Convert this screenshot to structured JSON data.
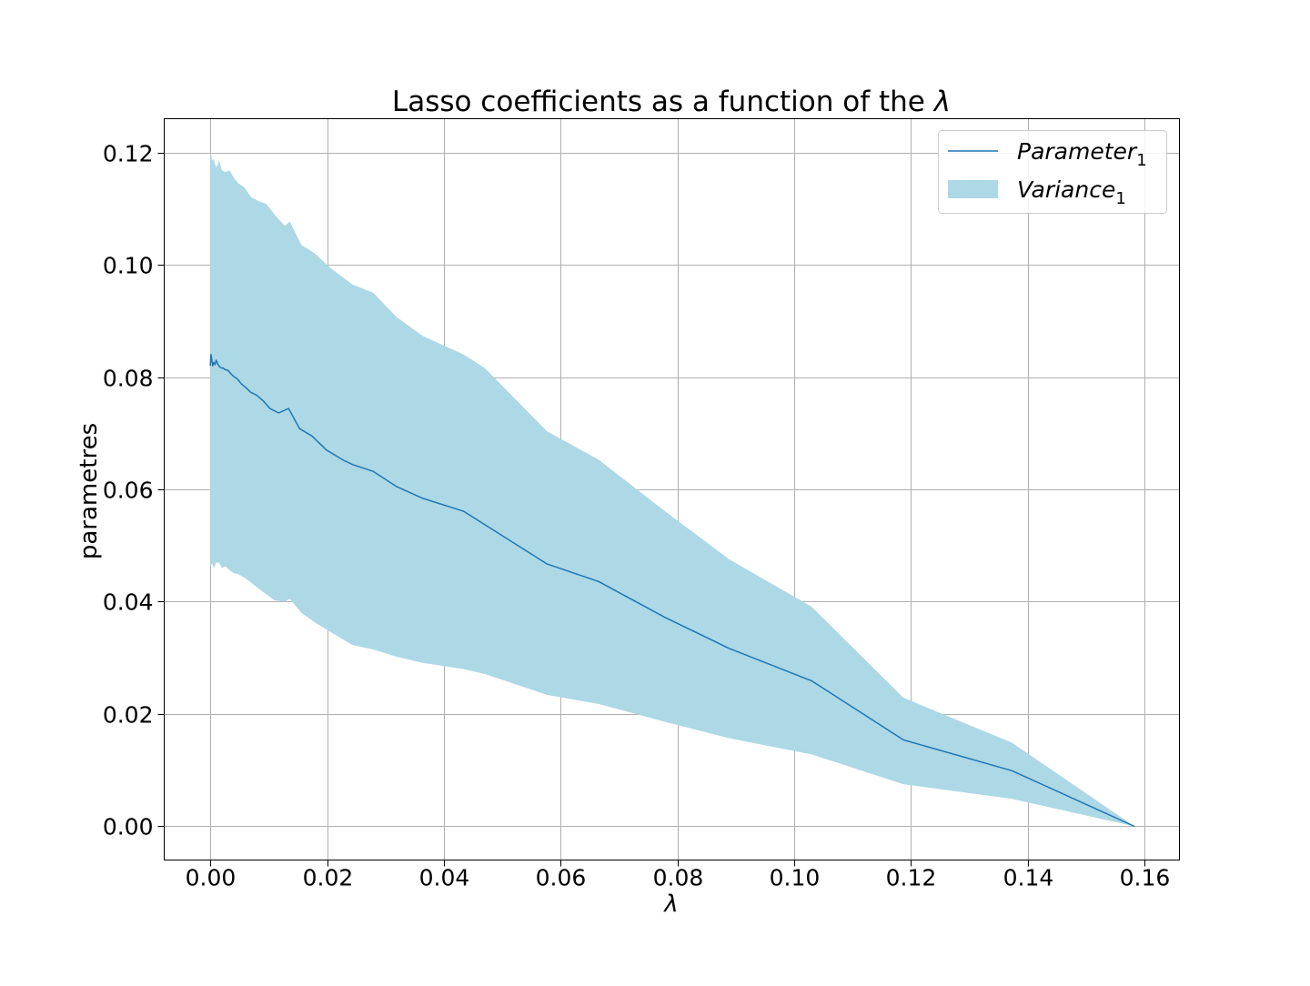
{
  "chart_data": {
    "type": "line",
    "title": "Lasso coefficients as a function of the",
    "title_symbol": "λ",
    "xlabel": "λ",
    "ylabel": "parametres",
    "xlim": [
      -0.0079,
      0.166
    ],
    "ylim": [
      -0.006,
      0.126
    ],
    "x_ticks": [
      0.0,
      0.02,
      0.04,
      0.06,
      0.08,
      0.1,
      0.12,
      0.14,
      0.16
    ],
    "x_tick_labels": [
      "0.00",
      "0.02",
      "0.04",
      "0.06",
      "0.08",
      "0.10",
      "0.12",
      "0.14",
      "0.16"
    ],
    "y_ticks": [
      0.0,
      0.02,
      0.04,
      0.06,
      0.08,
      0.1,
      0.12
    ],
    "y_tick_labels": [
      "0.00",
      "0.02",
      "0.04",
      "0.06",
      "0.08",
      "0.10",
      "0.12"
    ],
    "grid": true,
    "legend_position": "top-right",
    "legend": [
      {
        "name": "Parameter",
        "subscript": "1",
        "kind": "line",
        "color": "#1f77b4"
      },
      {
        "name": "Variance",
        "subscript": "1",
        "kind": "fill",
        "color": "#add8e6"
      }
    ],
    "series": [
      {
        "name": "Parameter_1",
        "color": "#1f77b4",
        "x": [
          0.0,
          0.0001,
          0.0002,
          0.0004,
          0.0006,
          0.0008,
          0.001,
          0.0013,
          0.0016,
          0.0019,
          0.0022,
          0.0026,
          0.003,
          0.0035,
          0.004,
          0.0046,
          0.0053,
          0.006,
          0.0069,
          0.0079,
          0.009,
          0.0102,
          0.0117,
          0.0134,
          0.0153,
          0.0174,
          0.0199,
          0.0228,
          0.0244,
          0.0279,
          0.0319,
          0.0364,
          0.0434,
          0.0577,
          0.0665,
          0.0779,
          0.0888,
          0.103,
          0.1187,
          0.1373,
          0.1583
        ],
        "y": [
          0.082,
          0.084,
          0.0835,
          0.082,
          0.0826,
          0.0822,
          0.083,
          0.0823,
          0.0818,
          0.0816,
          0.0816,
          0.0813,
          0.0812,
          0.0806,
          0.0801,
          0.0797,
          0.0788,
          0.0782,
          0.0773,
          0.0768,
          0.0758,
          0.0744,
          0.0736,
          0.0744,
          0.0708,
          0.0695,
          0.067,
          0.0652,
          0.0644,
          0.0632,
          0.0605,
          0.0584,
          0.0561,
          0.0467,
          0.0436,
          0.0372,
          0.0317,
          0.0259,
          0.0154,
          0.0099,
          0.0
        ]
      },
      {
        "name": "Variance_1",
        "color": "#add8e6",
        "x": [
          0.0,
          0.0001,
          0.0003,
          0.0006,
          0.001,
          0.0015,
          0.002,
          0.0026,
          0.0033,
          0.004,
          0.0048,
          0.0058,
          0.007,
          0.0083,
          0.0096,
          0.0111,
          0.0128,
          0.0136,
          0.0156,
          0.0178,
          0.0206,
          0.0243,
          0.0279,
          0.0319,
          0.0364,
          0.0434,
          0.0471,
          0.0577,
          0.0665,
          0.0779,
          0.0888,
          0.103,
          0.1187,
          0.1373,
          0.1583
        ],
        "y_upper": [
          0.1195,
          0.1201,
          0.1185,
          0.1188,
          0.1172,
          0.1185,
          0.1168,
          0.1165,
          0.1168,
          0.1155,
          0.1145,
          0.1138,
          0.112,
          0.1113,
          0.1108,
          0.1088,
          0.1069,
          0.1077,
          0.1035,
          0.1021,
          0.0994,
          0.0965,
          0.095,
          0.0907,
          0.0873,
          0.084,
          0.0815,
          0.0703,
          0.0653,
          0.0561,
          0.0476,
          0.0391,
          0.0229,
          0.0149,
          0.0
        ],
        "y_lower": [
          0.0465,
          0.0463,
          0.0469,
          0.0459,
          0.047,
          0.0469,
          0.046,
          0.0463,
          0.0456,
          0.0451,
          0.0449,
          0.0443,
          0.0434,
          0.0423,
          0.0413,
          0.0402,
          0.04,
          0.0405,
          0.038,
          0.0364,
          0.0346,
          0.0323,
          0.0315,
          0.0302,
          0.0291,
          0.028,
          0.0271,
          0.0234,
          0.0218,
          0.0186,
          0.0157,
          0.0128,
          0.0075,
          0.0049,
          0.0
        ]
      }
    ]
  }
}
